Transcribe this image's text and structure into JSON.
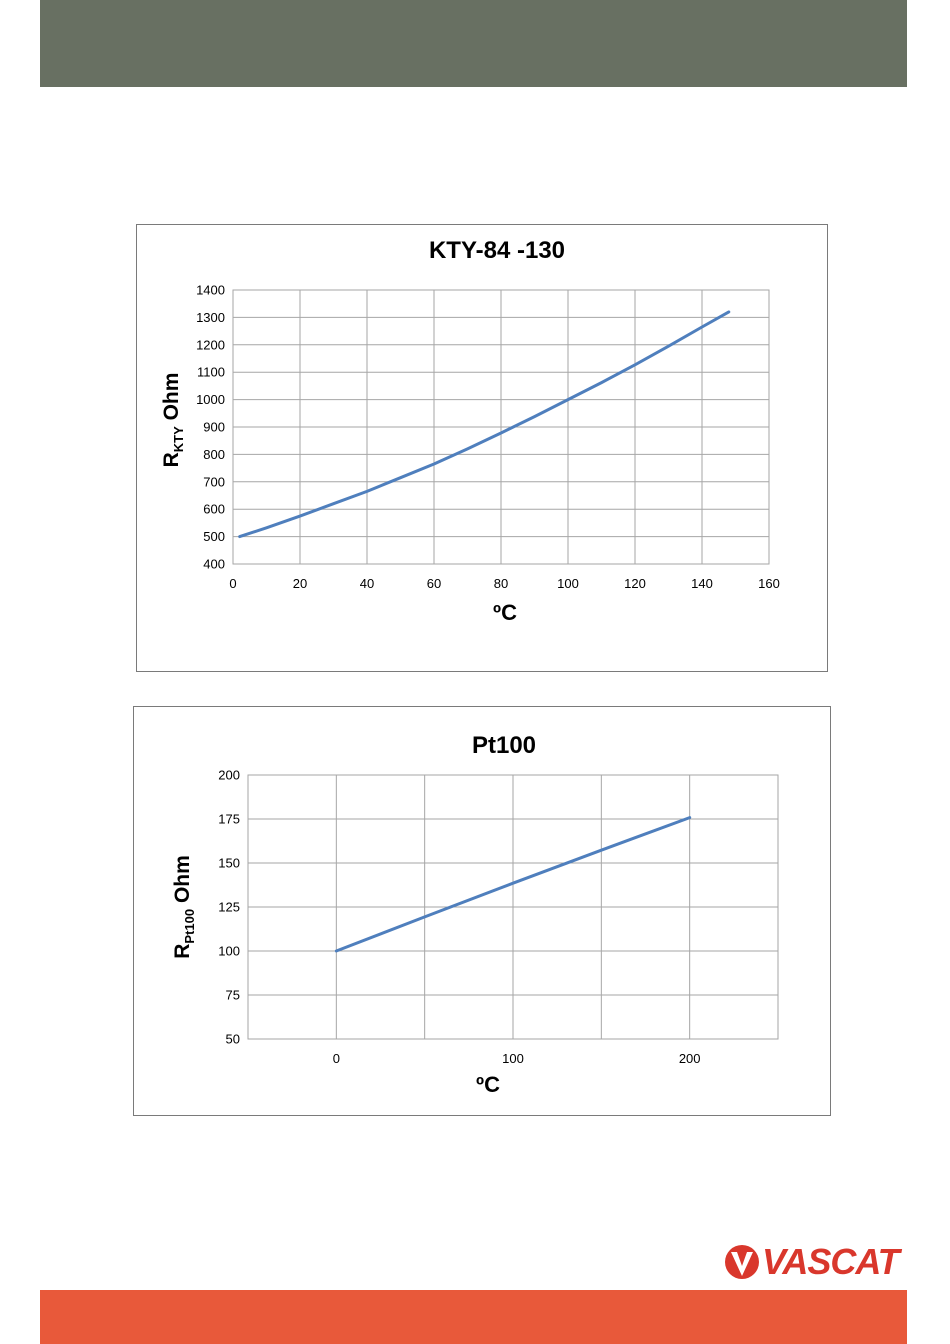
{
  "colors": {
    "header": "#687062",
    "footer": "#e8593a",
    "series": "#4f7fbd",
    "grid": "#a6a6a6",
    "logo": "#d9372c"
  },
  "logo": {
    "text": "VASCAT"
  },
  "chart_data": [
    {
      "type": "line",
      "title": "KTY-84 -130",
      "xlabel": "ºC",
      "ylabel_main": "R",
      "ylabel_sub": "KTY",
      "ylabel_rest": " Ohm",
      "xlim": [
        0,
        160
      ],
      "ylim": [
        400,
        1400
      ],
      "xticks": [
        0,
        20,
        40,
        60,
        80,
        100,
        120,
        140,
        160
      ],
      "yticks": [
        400,
        500,
        600,
        700,
        800,
        900,
        1000,
        1100,
        1200,
        1300,
        1400
      ],
      "grid": true,
      "series": [
        {
          "x": [
            2,
            10,
            20,
            30,
            40,
            50,
            60,
            70,
            80,
            90,
            100,
            110,
            120,
            130,
            140,
            148
          ],
          "values": [
            500,
            532,
            575,
            620,
            665,
            715,
            765,
            820,
            878,
            938,
            1000,
            1062,
            1127,
            1195,
            1265,
            1320
          ]
        }
      ]
    },
    {
      "type": "line",
      "title": "Pt100",
      "xlabel": "ºC",
      "ylabel_main": "R",
      "ylabel_sub": "Pt100",
      "ylabel_rest": " Ohm",
      "xlim": [
        -50,
        250
      ],
      "ylim": [
        50,
        200
      ],
      "xticks": [
        0,
        100,
        200
      ],
      "xgrid": [
        -50,
        0,
        50,
        100,
        150,
        200,
        250
      ],
      "yticks": [
        50,
        75,
        100,
        125,
        150,
        175,
        200
      ],
      "grid": true,
      "series": [
        {
          "x": [
            0,
            50,
            100,
            150,
            200
          ],
          "values": [
            100,
            119.4,
            138.5,
            157.3,
            175.8
          ]
        }
      ]
    }
  ]
}
